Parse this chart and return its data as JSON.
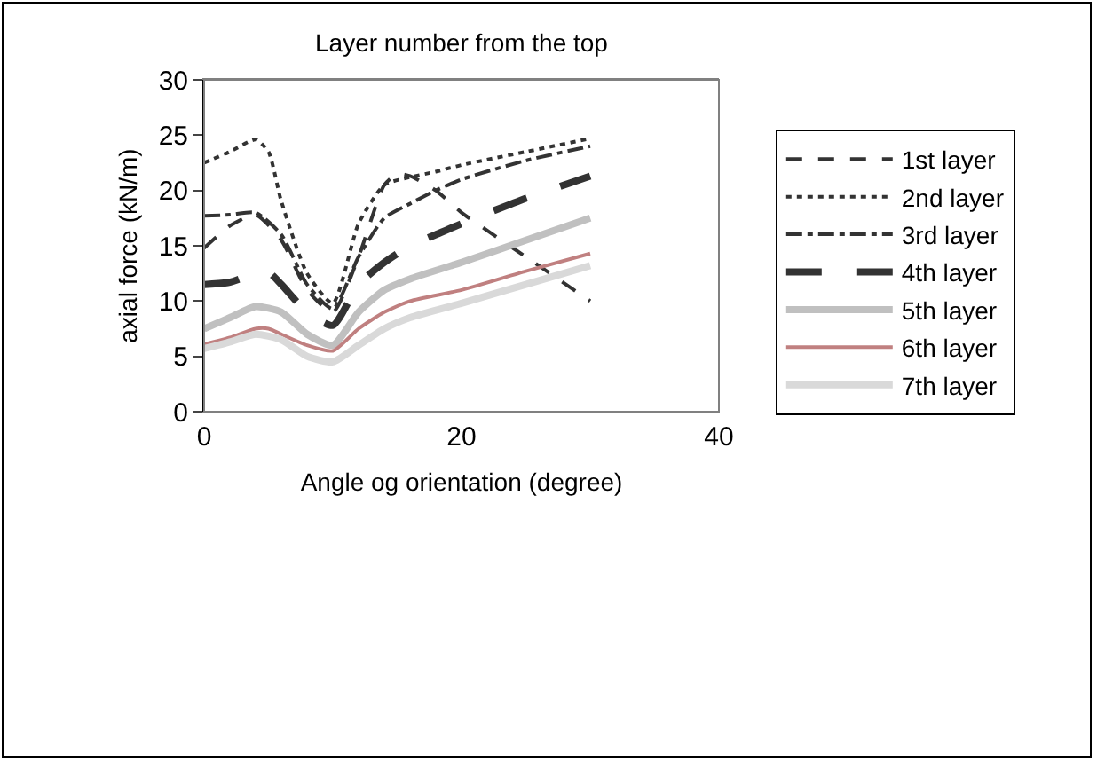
{
  "chart_data": {
    "type": "line",
    "title": "Layer number from the top",
    "xlabel": "Angle og orientation (degree)",
    "ylabel": "axial force (kN/m)",
    "xlim": [
      0,
      40
    ],
    "xticks": [
      0,
      20,
      40
    ],
    "ylim": [
      0,
      30
    ],
    "yticks": [
      0,
      5,
      10,
      15,
      20,
      25,
      30
    ],
    "grid": false,
    "legend": "right",
    "marker": "none",
    "series": [
      {
        "name": "1st layer",
        "color": "#333333",
        "line_style": "dashed",
        "x": [
          0,
          2,
          4,
          6,
          8,
          10,
          12,
          14,
          15,
          16,
          18,
          20,
          25,
          30
        ],
        "values": [
          14.8,
          16.8,
          17.8,
          15.5,
          11,
          9,
          14,
          20.5,
          21.5,
          21.3,
          20,
          18,
          14,
          10
        ]
      },
      {
        "name": "2nd layer",
        "color": "#333333",
        "line_style": "dotted",
        "x": [
          0,
          2,
          4,
          5,
          6,
          8,
          10,
          12,
          14,
          16,
          18,
          20,
          25,
          30
        ],
        "values": [
          22.5,
          23.5,
          24.6,
          23.5,
          19,
          12.5,
          9.8,
          17,
          20.5,
          21.2,
          21.7,
          22.3,
          23.5,
          24.7
        ]
      },
      {
        "name": "3rd layer",
        "color": "#333333",
        "line_style": "dashdot",
        "x": [
          0,
          2,
          4,
          6,
          8,
          10,
          12,
          14,
          16,
          18,
          20,
          25,
          30
        ],
        "values": [
          17.7,
          17.8,
          18,
          16,
          11.5,
          9.3,
          14,
          17.5,
          18.8,
          20,
          21,
          22.7,
          24
        ]
      },
      {
        "name": "4th layer",
        "color": "#333333",
        "line_style": "longdash",
        "x": [
          0,
          2,
          4,
          5,
          6,
          8,
          10,
          12,
          14,
          16,
          18,
          20,
          25,
          30
        ],
        "values": [
          11.5,
          11.7,
          12.5,
          12.6,
          11.5,
          9,
          7.8,
          11.5,
          13.5,
          15,
          16,
          17,
          19.3,
          21.3
        ]
      },
      {
        "name": "5th layer",
        "color": "#c0c0c0",
        "line_style": "solid",
        "x": [
          0,
          2,
          4,
          6,
          8,
          10,
          12,
          14,
          16,
          20,
          25,
          30
        ],
        "values": [
          7.5,
          8.5,
          9.5,
          9,
          7,
          6,
          9,
          11,
          12,
          13.5,
          15.5,
          17.5
        ]
      },
      {
        "name": "6th layer",
        "color": "#c08080",
        "line_style": "solid",
        "x": [
          0,
          2,
          4,
          5,
          6,
          8,
          10,
          12,
          14,
          16,
          20,
          25,
          30
        ],
        "values": [
          6.1,
          6.7,
          7.5,
          7.5,
          7,
          6,
          5.5,
          7.5,
          9,
          10,
          11,
          12.7,
          14.3
        ]
      },
      {
        "name": "7th layer",
        "color": "#d9d9d9",
        "line_style": "solid",
        "x": [
          0,
          2,
          4,
          6,
          8,
          10,
          12,
          14,
          16,
          20,
          25,
          30
        ],
        "values": [
          5.7,
          6.3,
          7,
          6.5,
          5,
          4.5,
          6,
          7.5,
          8.5,
          9.8,
          11.5,
          13.2
        ]
      }
    ]
  }
}
